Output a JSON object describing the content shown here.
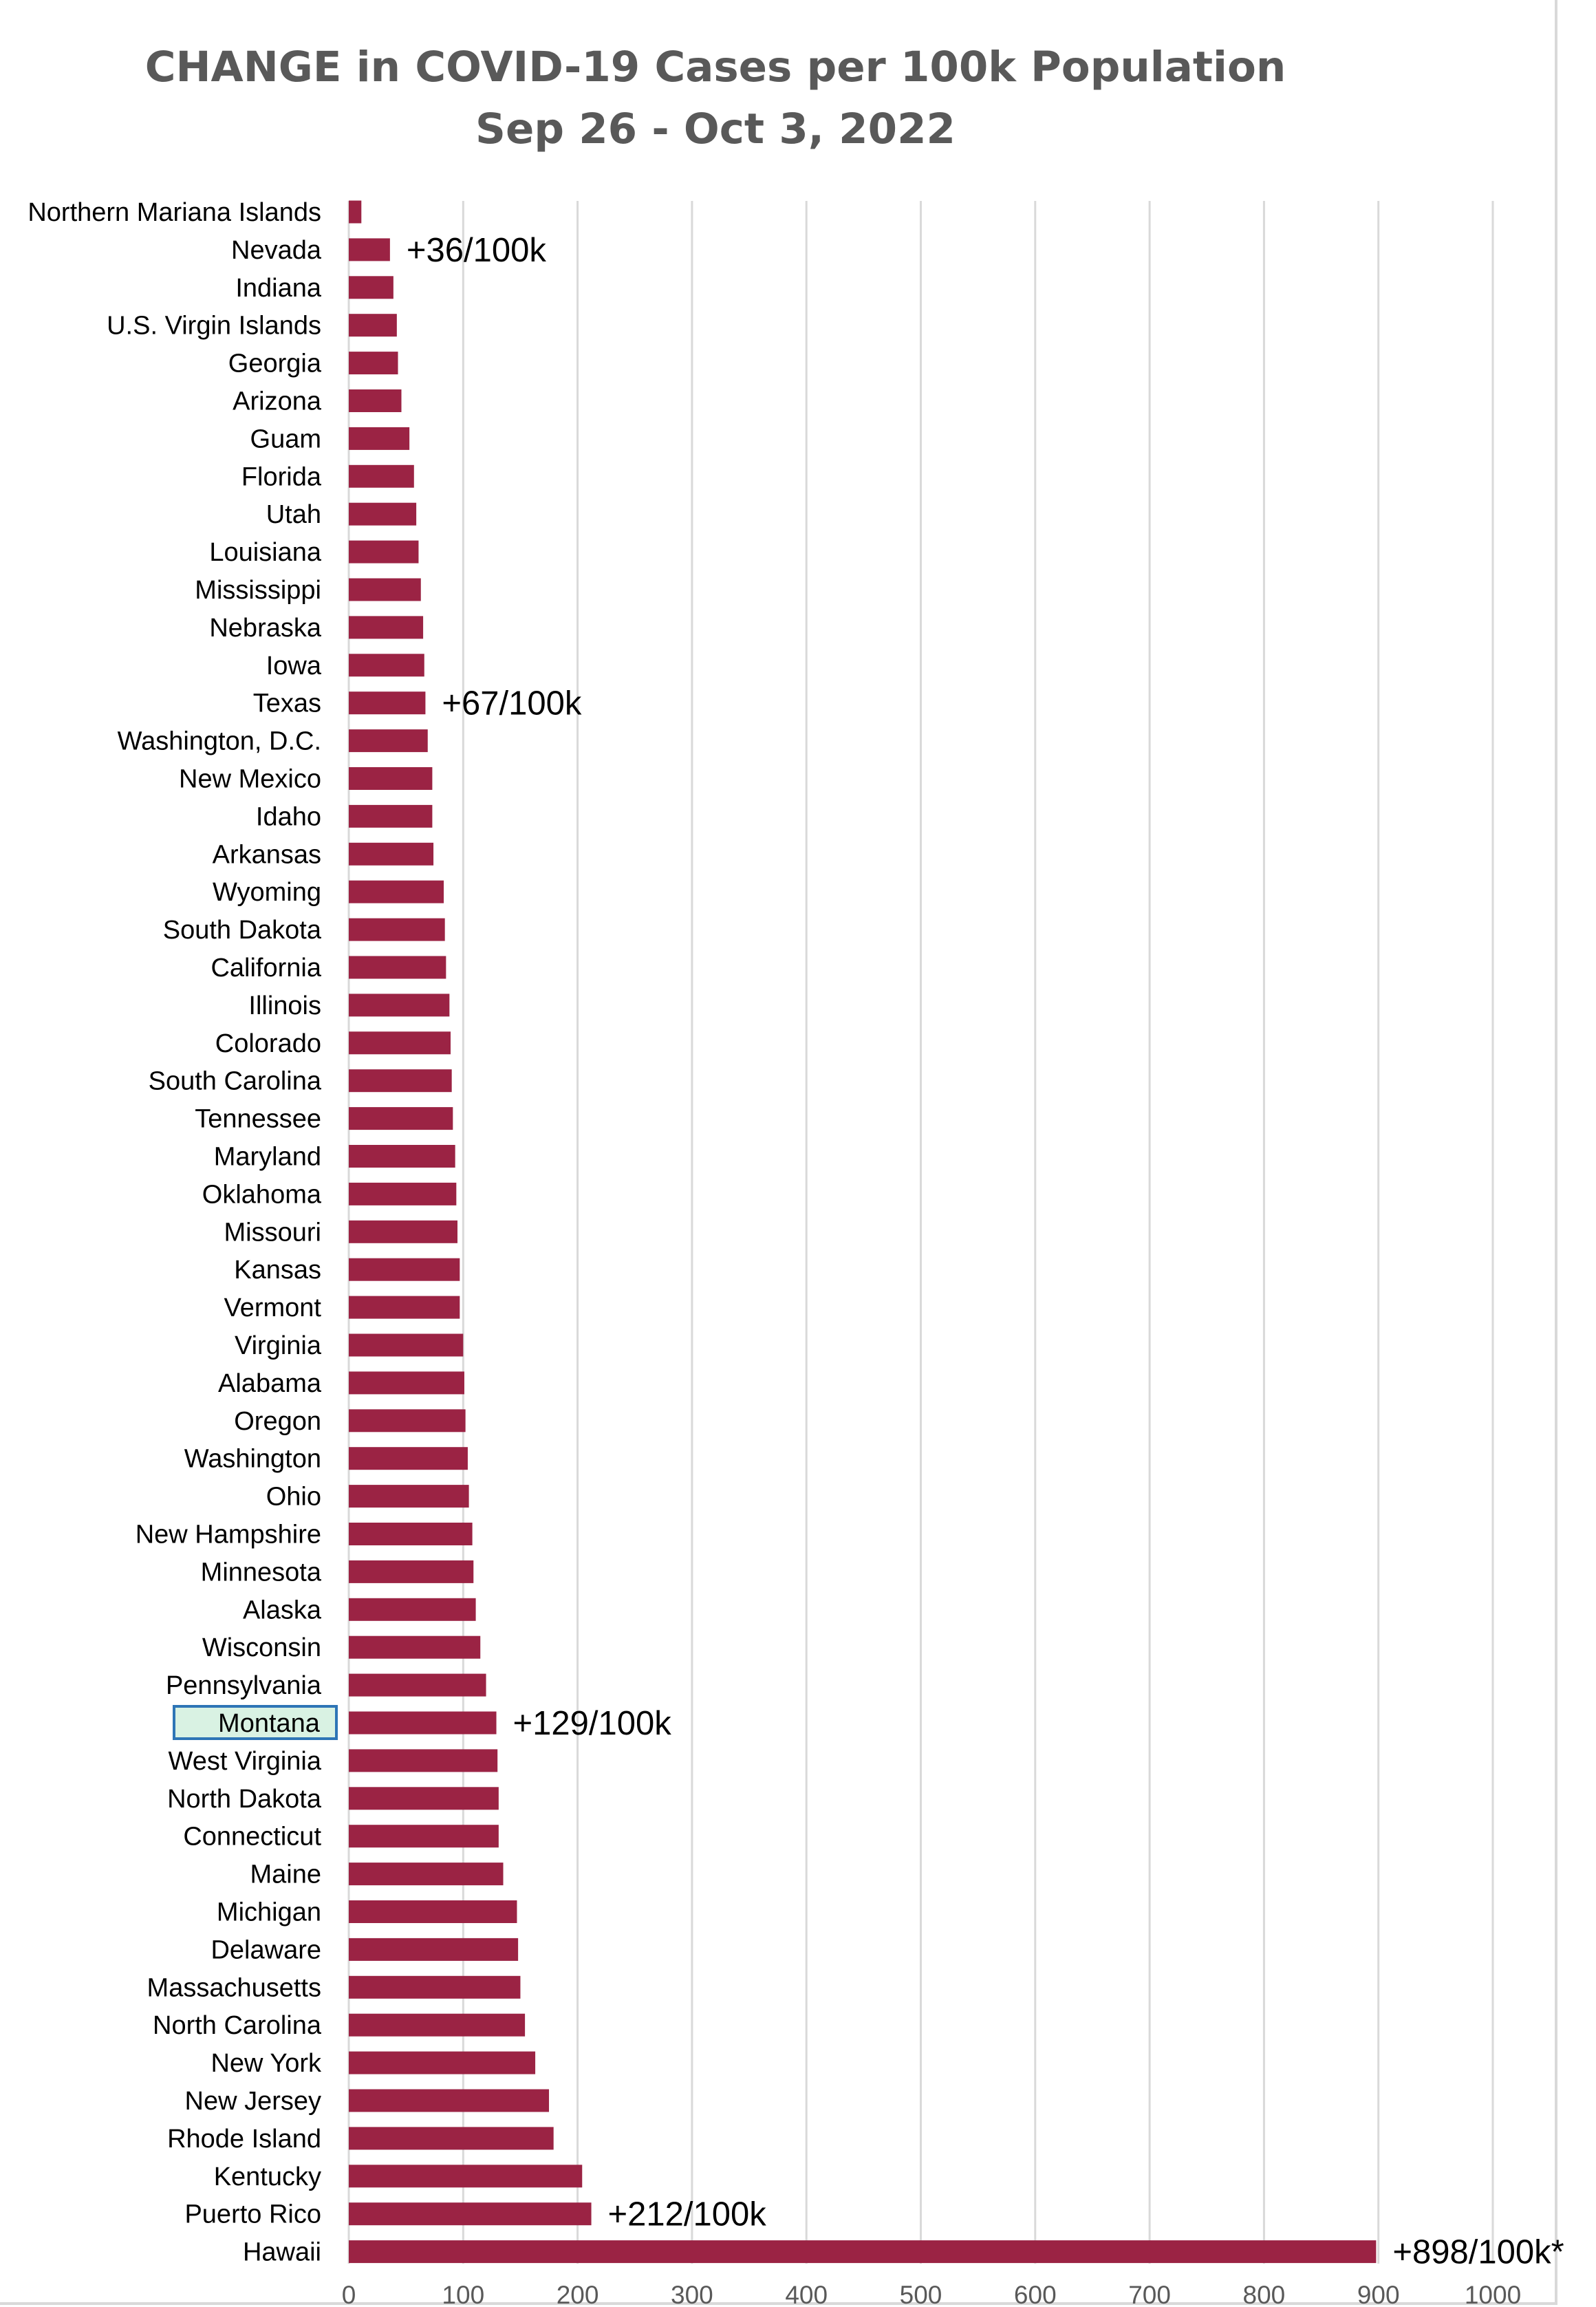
{
  "chart_data": {
    "type": "bar",
    "orientation": "horizontal",
    "title": "CHANGE in COVID-19 Cases per 100k Population",
    "subtitle": "Sep 26 - Oct 3, 2022",
    "xlim": [
      0,
      1000
    ],
    "xticks": [
      0,
      100,
      200,
      300,
      400,
      500,
      600,
      700,
      800,
      900,
      1000
    ],
    "grid": "vertical",
    "bar_color": "#9b2344",
    "highlight_color": "#d9f2e3",
    "highlight_border": "#2e75b6",
    "highlighted_category": "Montana",
    "categories": [
      "Northern Mariana Islands",
      "Nevada",
      "Indiana",
      "U.S. Virgin Islands",
      "Georgia",
      "Arizona",
      "Guam",
      "Florida",
      "Utah",
      "Louisiana",
      "Mississippi",
      "Nebraska",
      "Iowa",
      "Texas",
      "Washington, D.C.",
      "New Mexico",
      "Idaho",
      "Arkansas",
      "Wyoming",
      "South Dakota",
      "California",
      "Illinois",
      "Colorado",
      "South Carolina",
      "Tennessee",
      "Maryland",
      "Oklahoma",
      "Missouri",
      "Kansas",
      "Vermont",
      "Virginia",
      "Alabama",
      "Oregon",
      "Washington",
      "Ohio",
      "New Hampshire",
      "Minnesota",
      "Alaska",
      "Wisconsin",
      "Pennsylvania",
      "Montana",
      "West Virginia",
      "North Dakota",
      "Connecticut",
      "Maine",
      "Michigan",
      "Delaware",
      "Massachusetts",
      "North Carolina",
      "New York",
      "New Jersey",
      "Rhode Island",
      "Kentucky",
      "Puerto Rico",
      "Hawaii"
    ],
    "values": [
      11,
      36,
      39,
      42,
      43,
      46,
      53,
      57,
      59,
      61,
      63,
      65,
      66,
      67,
      69,
      73,
      73,
      74,
      83,
      84,
      85,
      88,
      89,
      90,
      91,
      93,
      94,
      95,
      97,
      97,
      100,
      101,
      102,
      104,
      105,
      108,
      109,
      111,
      115,
      120,
      129,
      130,
      131,
      131,
      135,
      147,
      148,
      150,
      154,
      163,
      175,
      179,
      204,
      212,
      898
    ],
    "annotations": [
      {
        "category": "Nevada",
        "text": "+36/100k"
      },
      {
        "category": "Texas",
        "text": "+67/100k"
      },
      {
        "category": "Montana",
        "text": "+129/100k"
      },
      {
        "category": "Puerto Rico",
        "text": "+212/100k"
      },
      {
        "category": "Hawaii",
        "text": "+898/100k*"
      }
    ]
  }
}
